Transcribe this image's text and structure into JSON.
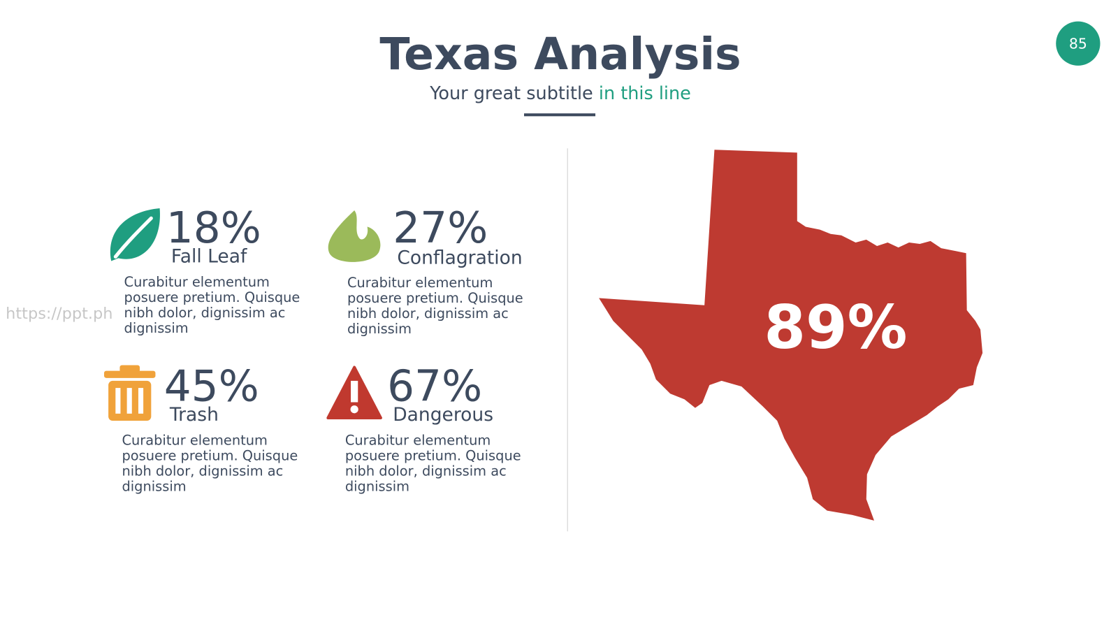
{
  "header": {
    "title": "Texas Analysis",
    "subtitle": "Your great subtitle",
    "subtitle_highlight": "in this line",
    "page_number": "85"
  },
  "watermark": "https://ppt.ph",
  "items": [
    {
      "percent": "18%",
      "label": "Fall Leaf",
      "lines": [
        "Curabitur elementum",
        "posuere pretium. Quisque",
        "nibh dolor, dignissim ac",
        "dignissim"
      ]
    },
    {
      "percent": "27%",
      "label": "Conflagration",
      "lines": [
        "Curabitur elementum",
        "posuere pretium. Quisque",
        "nibh dolor, dignissim ac",
        "dignissim"
      ]
    },
    {
      "percent": "45%",
      "label": "Trash",
      "lines": [
        "Curabitur elementum",
        "posuere pretium. Quisque",
        "nibh dolor, dignissim ac",
        "dignissim"
      ]
    },
    {
      "percent": "67%",
      "label": "Dangerous",
      "lines": [
        "Curabitur elementum",
        "posuere pretium. Quisque",
        "nibh dolor, dignissim ac",
        "dignissim"
      ]
    }
  ],
  "map": {
    "percent": "89%"
  }
}
